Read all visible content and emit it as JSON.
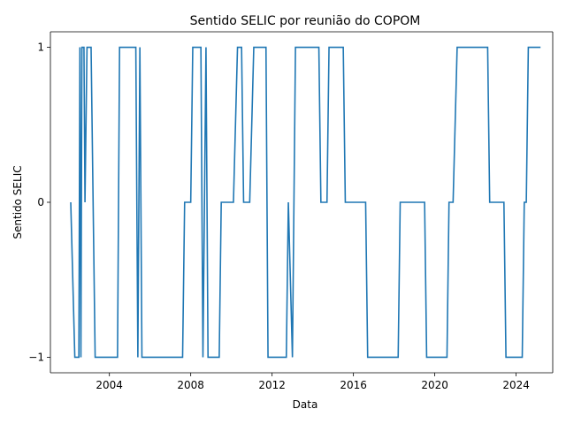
{
  "chart_data": {
    "type": "line",
    "title": "Sentido SELIC por reunião do COPOM",
    "xlabel": "Data",
    "ylabel": "Sentido SELIC",
    "x_ticks": [
      "2004",
      "2008",
      "2012",
      "2016",
      "2020",
      "2024"
    ],
    "y_ticks": [
      "1",
      "0",
      "−1"
    ],
    "xlim": [
      2001.1,
      2025.8
    ],
    "ylim": [
      -1.1,
      1.1
    ],
    "grid": false,
    "colors": {
      "line": "#1f77b4"
    },
    "series": [
      {
        "x": [
          2002.1,
          2002.3,
          2002.5,
          2002.55,
          2002.6,
          2002.65,
          2002.7,
          2002.75,
          2002.8,
          2002.9,
          2002.95,
          2003.0,
          2003.1,
          2003.3,
          2003.4,
          2004.4,
          2004.5,
          2005.3,
          2005.4,
          2005.5,
          2005.6,
          2005.7,
          2007.6,
          2007.7,
          2008.0,
          2008.1,
          2008.5,
          2008.6,
          2008.75,
          2008.85,
          2009.0,
          2009.4,
          2009.5,
          2010.1,
          2010.3,
          2010.5,
          2010.6,
          2010.9,
          2011.1,
          2011.2,
          2011.7,
          2011.8,
          2012.6,
          2012.7,
          2012.8,
          2013.0,
          2013.15,
          2013.3,
          2014.3,
          2014.4,
          2014.7,
          2014.8,
          2015.5,
          2015.6,
          2016.6,
          2016.7,
          2018.2,
          2018.3,
          2019.5,
          2019.6,
          2020.6,
          2020.7,
          2020.9,
          2021.1,
          2021.2,
          2022.6,
          2022.7,
          2023.4,
          2023.5,
          2024.3,
          2024.4,
          2024.5,
          2024.6,
          2024.7,
          2025.2
        ],
        "y": [
          0,
          -1,
          -1,
          1,
          -1,
          1,
          1,
          1,
          0,
          1,
          1,
          1,
          1,
          -1,
          -1,
          -1,
          1,
          1,
          -1,
          1,
          -1,
          -1,
          -1,
          0,
          0,
          1,
          1,
          -1,
          1,
          -1,
          -1,
          -1,
          0,
          0,
          1,
          1,
          0,
          0,
          1,
          1,
          1,
          -1,
          -1,
          -1,
          0,
          -1,
          1,
          1,
          1,
          0,
          0,
          1,
          1,
          0,
          0,
          -1,
          -1,
          0,
          0,
          -1,
          -1,
          0,
          0,
          1,
          1,
          1,
          0,
          0,
          -1,
          -1,
          0,
          0,
          1,
          1,
          1
        ]
      }
    ]
  }
}
